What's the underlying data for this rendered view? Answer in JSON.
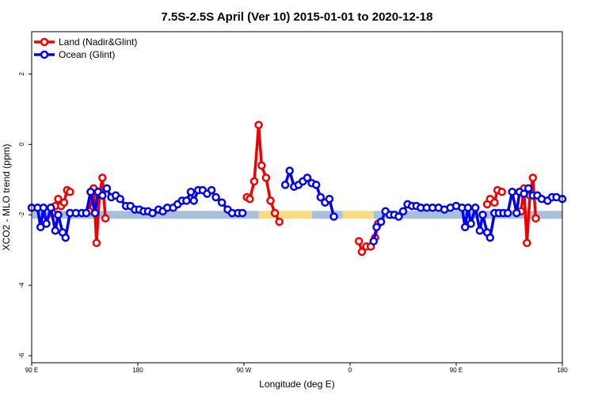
{
  "chart_data": {
    "type": "line",
    "title": "7.5S-2.5S April (Ver 10)   2015-01-01 to 2020-12-18",
    "xlabel": "Longitude (deg E)",
    "ylabel": "XCO2 - MLO trend (ppm)",
    "xlim": [
      90,
      450
    ],
    "ylim": [
      -6.2,
      3.2
    ],
    "xticks": [
      {
        "value": 90,
        "label": "90 E"
      },
      {
        "value": 162,
        "label": "180"
      },
      {
        "value": 234,
        "label": "90 W"
      },
      {
        "value": 306,
        "label": "0"
      },
      {
        "value": 378,
        "label": "90 E"
      },
      {
        "value": 450,
        "label": "180"
      }
    ],
    "yticks": [
      {
        "value": 2,
        "label": "2"
      },
      {
        "value": 0,
        "label": "0"
      },
      {
        "value": -2,
        "label": "-2"
      },
      {
        "value": -4,
        "label": "-4"
      },
      {
        "value": -6,
        "label": "-6"
      }
    ],
    "legend": {
      "position": "top-left"
    },
    "surface_bar": {
      "y": -2.0,
      "segments": [
        {
          "x": [
            90,
            244
          ],
          "color": "#a9c0dd"
        },
        {
          "x": [
            244,
            280
          ],
          "color": "#f7dc82"
        },
        {
          "x": [
            280,
            301
          ],
          "color": "#a9c0dd"
        },
        {
          "x": [
            301,
            322
          ],
          "color": "#f7dc82"
        },
        {
          "x": [
            322,
            450
          ],
          "color": "#a9c0dd"
        }
      ]
    },
    "series": [
      {
        "name": "Land (Nadir&Glint)",
        "color": "#ee0000",
        "segments": [
          [
            [
              104,
              -1.95
            ],
            [
              106,
              -1.75
            ],
            [
              108,
              -1.55
            ],
            [
              110,
              -1.75
            ],
            [
              112,
              -1.65
            ],
            [
              114,
              -1.3
            ],
            [
              116,
              -1.35
            ]
          ],
          [
            [
              129,
              -1.9
            ],
            [
              132,
              -1.25
            ],
            [
              134,
              -2.8
            ],
            [
              136,
              -1.45
            ],
            [
              138,
              -0.95
            ],
            [
              140,
              -2.1
            ]
          ],
          [
            [
              236,
              -1.5
            ],
            [
              238,
              -1.55
            ],
            [
              241,
              -1.05
            ],
            [
              244,
              0.55
            ],
            [
              246,
              -0.6
            ],
            [
              249,
              -0.95
            ],
            [
              252,
              -1.6
            ],
            [
              255,
              -1.95
            ],
            [
              258,
              -2.2
            ]
          ],
          [
            [
              312,
              -2.75
            ],
            [
              314,
              -3.05
            ],
            [
              317,
              -2.9
            ],
            [
              320,
              -2.9
            ],
            [
              323,
              -2.65
            ],
            [
              325,
              -2.25
            ]
          ],
          [
            [
              399,
              -1.7
            ],
            [
              401,
              -1.55
            ],
            [
              404,
              -1.65
            ],
            [
              406,
              -1.3
            ],
            [
              409,
              -1.35
            ]
          ],
          [
            [
              422,
              -1.9
            ],
            [
              424,
              -1.25
            ],
            [
              426,
              -2.8
            ],
            [
              428,
              -1.45
            ],
            [
              430,
              -0.95
            ],
            [
              432,
              -2.1
            ]
          ]
        ]
      },
      {
        "name": "Ocean (Glint)",
        "color": "#0000ee",
        "segments": [
          [
            [
              90,
              -1.8
            ],
            [
              94,
              -1.8
            ],
            [
              96,
              -2.35
            ],
            [
              98,
              -1.8
            ],
            [
              100,
              -2.25
            ],
            [
              103,
              -1.8
            ],
            [
              106,
              -2.45
            ],
            [
              108,
              -2.0
            ],
            [
              111,
              -2.5
            ],
            [
              113,
              -2.65
            ],
            [
              116,
              -1.95
            ]
          ],
          [
            [
              116,
              -1.95
            ],
            [
              120,
              -1.95
            ],
            [
              124,
              -1.95
            ],
            [
              127,
              -1.95
            ],
            [
              130,
              -1.35
            ],
            [
              133,
              -1.95
            ],
            [
              135,
              -1.35
            ],
            [
              138,
              -1.45
            ],
            [
              141,
              -1.25
            ],
            [
              144,
              -1.5
            ],
            [
              147,
              -1.45
            ],
            [
              150,
              -1.55
            ],
            [
              154,
              -1.75
            ],
            [
              157,
              -1.75
            ],
            [
              160,
              -1.85
            ],
            [
              163,
              -1.85
            ],
            [
              166,
              -1.9
            ],
            [
              169,
              -1.9
            ],
            [
              172,
              -1.95
            ],
            [
              176,
              -1.85
            ],
            [
              179,
              -1.9
            ],
            [
              182,
              -1.8
            ],
            [
              186,
              -1.8
            ],
            [
              189,
              -1.7
            ],
            [
              192,
              -1.6
            ],
            [
              195,
              -1.6
            ],
            [
              198,
              -1.35
            ],
            [
              200,
              -1.6
            ],
            [
              203,
              -1.3
            ],
            [
              206,
              -1.3
            ],
            [
              209,
              -1.4
            ],
            [
              212,
              -1.3
            ],
            [
              215,
              -1.5
            ],
            [
              219,
              -1.65
            ],
            [
              223,
              -1.85
            ],
            [
              226,
              -1.95
            ],
            [
              230,
              -1.95
            ],
            [
              233,
              -1.95
            ]
          ],
          [
            [
              262,
              -1.15
            ],
            [
              265,
              -0.75
            ],
            [
              268,
              -1.2
            ],
            [
              271,
              -1.15
            ],
            [
              274,
              -1.05
            ],
            [
              277,
              -0.95
            ],
            [
              280,
              -1.1
            ],
            [
              283,
              -1.15
            ],
            [
              286,
              -1.5
            ],
            [
              289,
              -1.65
            ],
            [
              292,
              -1.55
            ],
            [
              295,
              -2.05
            ]
          ],
          [
            [
              322,
              -2.75
            ],
            [
              324,
              -2.35
            ],
            [
              327,
              -2.2
            ],
            [
              330,
              -1.9
            ],
            [
              333,
              -2.0
            ],
            [
              336,
              -2.0
            ],
            [
              339,
              -2.05
            ],
            [
              342,
              -1.9
            ],
            [
              345,
              -1.7
            ],
            [
              348,
              -1.75
            ],
            [
              351,
              -1.75
            ],
            [
              354,
              -1.8
            ],
            [
              358,
              -1.8
            ],
            [
              362,
              -1.8
            ],
            [
              366,
              -1.8
            ],
            [
              370,
              -1.85
            ],
            [
              374,
              -1.8
            ],
            [
              378,
              -1.75
            ]
          ],
          [
            [
              378,
              -1.75
            ],
            [
              382,
              -1.8
            ],
            [
              384,
              -2.35
            ],
            [
              386,
              -1.8
            ],
            [
              388,
              -2.25
            ],
            [
              391,
              -1.8
            ],
            [
              394,
              -2.45
            ],
            [
              396,
              -2.0
            ],
            [
              399,
              -2.5
            ],
            [
              401,
              -2.65
            ],
            [
              404,
              -1.95
            ]
          ],
          [
            [
              404,
              -1.95
            ],
            [
              407,
              -1.95
            ],
            [
              410,
              -1.95
            ],
            [
              413,
              -1.95
            ],
            [
              416,
              -1.35
            ],
            [
              419,
              -1.95
            ],
            [
              421,
              -1.35
            ],
            [
              424,
              -1.4
            ],
            [
              427,
              -1.25
            ],
            [
              430,
              -1.45
            ],
            [
              433,
              -1.45
            ],
            [
              436,
              -1.55
            ],
            [
              440,
              -1.6
            ],
            [
              443,
              -1.5
            ],
            [
              446,
              -1.5
            ],
            [
              450,
              -1.55
            ]
          ]
        ]
      }
    ]
  }
}
